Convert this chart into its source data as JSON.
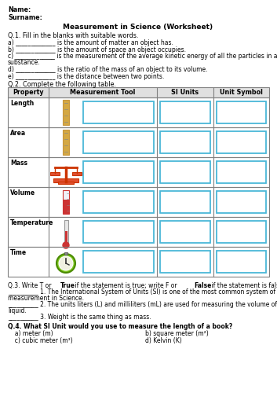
{
  "title": "Measurement in Science (Worksheet)",
  "name_label": "Name:",
  "surname_label": "Surname:",
  "q1_header": "Q.1. Fill in the blanks with suitable words.",
  "q1_items": [
    [
      "a) _____________ ",
      "is the amount of matter an object has."
    ],
    [
      "b) _____________ ",
      "is the amount of space an object occupies."
    ],
    [
      "c) _____________ ",
      "is the measurement of the average kinetic energy of all the particles in a"
    ],
    [
      "substance.",
      ""
    ],
    [
      "d) _____________ ",
      "is the ratio of the mass of an object to its volume."
    ],
    [
      "e) _____________ ",
      "is the distance between two points."
    ]
  ],
  "q2_header": "Q.2. Complete the following table.",
  "q2_columns": [
    "Property",
    "Measurement Tool",
    "SI Units",
    "Unit Symbol"
  ],
  "q2_rows": [
    "Length",
    "Area",
    "Mass",
    "Volume",
    "Temperature",
    "Time"
  ],
  "q3_header_parts": [
    [
      "Q.3. Write T or ",
      false
    ],
    [
      "True",
      true
    ],
    [
      " if the statement is true; write F or ",
      false
    ],
    [
      "False",
      true
    ],
    [
      " if the statement is false.",
      false
    ]
  ],
  "q3_items": [
    "__________ 1. The International System of Units (SI) is one of the most common system of\nmeasurement in Science.",
    "__________ 2. The units liters (L) and milliliters (mL) are used for measuring the volume of a\nliquid.",
    "__________ 3. Weight is the same thing as mass."
  ],
  "q4_header": "Q.4. What SI Unit would you use to measure the length of a book?",
  "q4_items": [
    [
      "  a) meter (m)",
      "b) square meter (m²)"
    ],
    [
      "  c) cubic meter (m³)",
      "d) Kelvin (K)"
    ]
  ],
  "bg_color": "#ffffff",
  "text_color": "#000000",
  "table_border_color": "#808080",
  "input_box_color": "#4ab8d8",
  "header_bg": "#e0e0e0"
}
